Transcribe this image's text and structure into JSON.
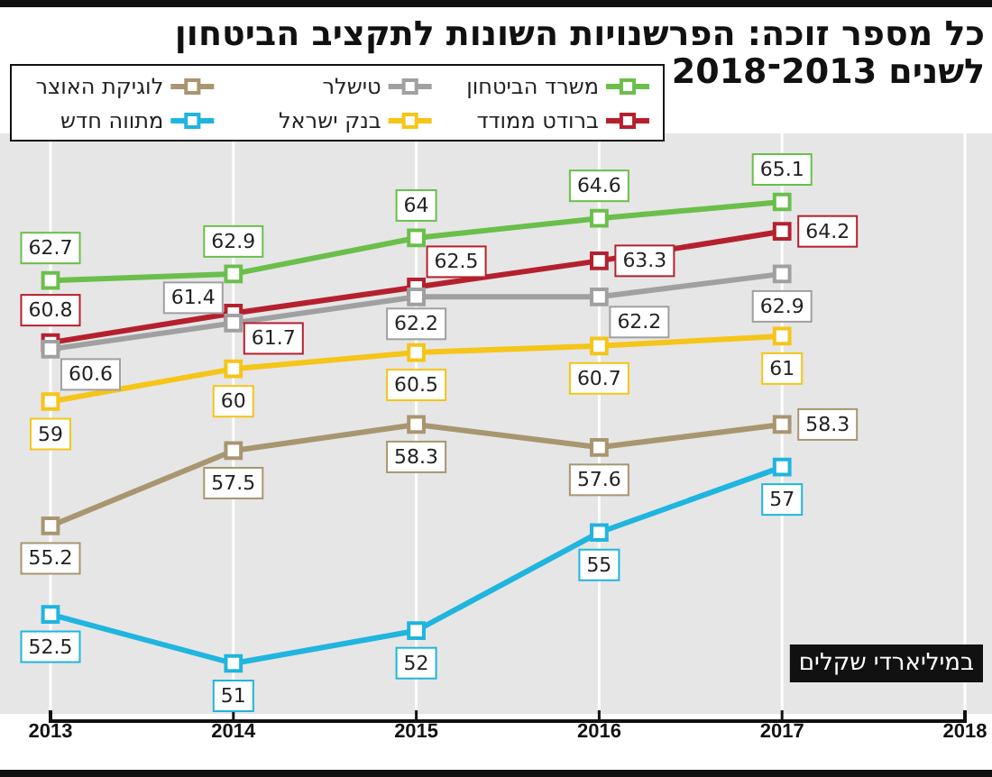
{
  "chart_data": {
    "type": "line",
    "title": "כל מספר זוכה: הפרשנויות השונות לתקציב הביטחון לשנים 2013־2018",
    "categories": [
      "2013",
      "2014",
      "2015",
      "2016",
      "2017",
      "2018"
    ],
    "series": [
      {
        "name": "משרד הביטחון",
        "color": "#6abf4b",
        "values": [
          62.7,
          62.9,
          64,
          64.6,
          65.1,
          null
        ]
      },
      {
        "name": "ברודט ממודד",
        "color": "#b5202e",
        "values": [
          60.8,
          61.7,
          62.5,
          63.3,
          64.2,
          null
        ]
      },
      {
        "name": "טישלר",
        "color": "#a0a0a0",
        "values": [
          60.6,
          61.4,
          62.2,
          62.2,
          62.9,
          null
        ]
      },
      {
        "name": "בנק ישראל",
        "color": "#f5c518",
        "values": [
          59,
          60,
          60.5,
          60.7,
          61,
          null
        ]
      },
      {
        "name": "לוגיקת האוצר",
        "color": "#a89670",
        "values": [
          55.2,
          57.5,
          58.3,
          57.6,
          58.3,
          null
        ]
      },
      {
        "name": "מתווה חדש",
        "color": "#1fb5de",
        "values": [
          52.5,
          51,
          52,
          55,
          57,
          null
        ]
      }
    ],
    "annotations": [
      "במיליארדי שקלים"
    ],
    "data_labels": true,
    "grid": "x",
    "legend": "top",
    "marker": "square",
    "line_style": "solid"
  }
}
